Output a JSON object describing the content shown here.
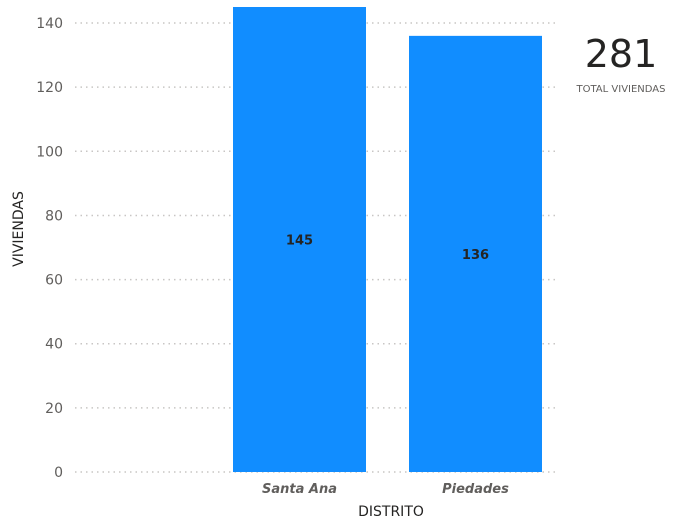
{
  "chart_data": {
    "type": "bar",
    "categories": [
      "Santa Ana",
      "Piedades"
    ],
    "values": [
      145,
      136
    ],
    "xlabel": "DISTRITO",
    "ylabel": "VIVIENDAS",
    "ylim": [
      0,
      145
    ],
    "yticks": [
      "0",
      "20",
      "40",
      "60",
      "80",
      "100",
      "120",
      "140"
    ],
    "bar_color": "#118dff",
    "grid": true
  },
  "kpi": {
    "value": "281",
    "label": "TOTAL VIVIENDAS"
  }
}
